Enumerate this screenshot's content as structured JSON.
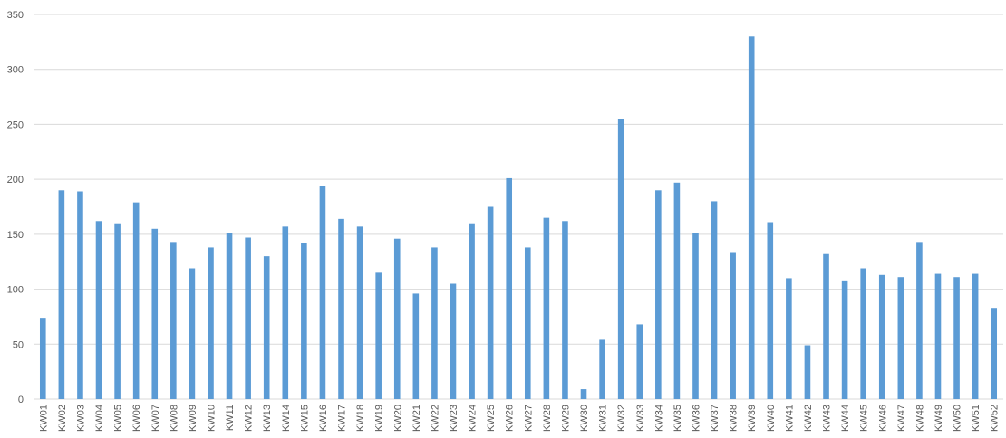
{
  "chart_data": {
    "type": "bar",
    "color": "#5b9bd5",
    "grid": true,
    "categories": [
      "KW01",
      "KW02",
      "KW03",
      "KW04",
      "KW05",
      "KW06",
      "KW07",
      "KW08",
      "KW09",
      "KW10",
      "KW11",
      "KW12",
      "KW13",
      "KW14",
      "KW15",
      "KW16",
      "KW17",
      "KW18",
      "KW19",
      "KW20",
      "KW21",
      "KW22",
      "KW23",
      "KW24",
      "KW25",
      "KW26",
      "KW27",
      "KW28",
      "KW29",
      "KW30",
      "KW31",
      "KW32",
      "KW33",
      "KW34",
      "KW35",
      "KW36",
      "KW37",
      "KW38",
      "KW39",
      "KW40",
      "KW41",
      "KW42",
      "KW43",
      "KW44",
      "KW45",
      "KW46",
      "KW47",
      "KW48",
      "KW49",
      "KW50",
      "KW51",
      "KW52"
    ],
    "values": [
      74,
      190,
      189,
      162,
      160,
      179,
      155,
      143,
      119,
      138,
      151,
      147,
      130,
      157,
      142,
      194,
      164,
      157,
      115,
      146,
      96,
      138,
      105,
      160,
      175,
      201,
      138,
      165,
      162,
      9,
      54,
      255,
      68,
      190,
      197,
      151,
      180,
      133,
      330,
      161,
      110,
      49,
      132,
      108,
      119,
      113,
      111,
      143,
      114,
      111,
      114,
      83
    ],
    "ylim": [
      0,
      350
    ],
    "yticks": [
      0,
      50,
      100,
      150,
      200,
      250,
      300,
      350
    ]
  }
}
